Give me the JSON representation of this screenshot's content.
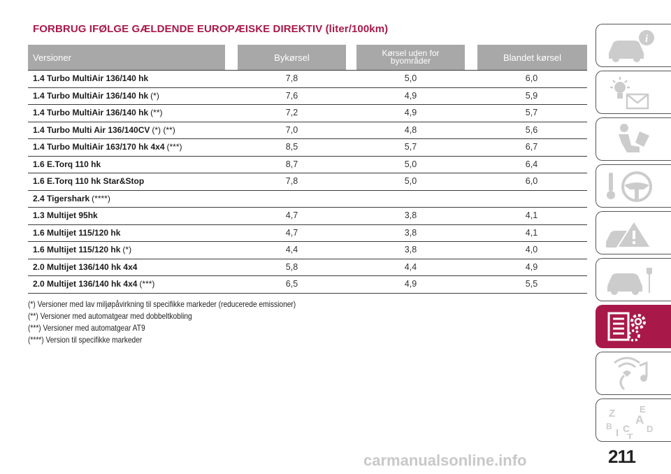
{
  "title": "FORBRUG IFØLGE GÆLDENDE EUROPÆISKE DIREKTIV (liter/100km)",
  "table": {
    "headers": [
      "Versioner",
      "Bykørsel",
      "Kørsel uden for byområder",
      "Blandet kørsel"
    ],
    "rows": [
      {
        "name": "1.4 Turbo MultiAir 136/140 hk",
        "note": "",
        "city": "7,8",
        "extra": "5,0",
        "combined": "6,0"
      },
      {
        "name": "1.4 Turbo MultiAir 136/140 hk",
        "note": "(*)",
        "city": "7,6",
        "extra": "4,9",
        "combined": "5,9"
      },
      {
        "name": "1.4 Turbo MultiAir 136/140 hk",
        "note": "(**)",
        "city": "7,2",
        "extra": "4,9",
        "combined": "5,7"
      },
      {
        "name": "1.4 Turbo Multi Air 136/140CV",
        "note": "(*) (**)",
        "city": "7,0",
        "extra": "4,8",
        "combined": "5,6"
      },
      {
        "name": "1.4 Turbo MultiAir 163/170 hk 4x4",
        "note": "(***)",
        "city": "8,5",
        "extra": "5,7",
        "combined": "6,7"
      },
      {
        "name": "1.6 E.Torq 110 hk",
        "note": "",
        "city": "8,7",
        "extra": "5,0",
        "combined": "6,4"
      },
      {
        "name": "1.6 E.Torq 110 hk Star&Stop",
        "note": "",
        "city": "7,8",
        "extra": "5,0",
        "combined": "6,0"
      },
      {
        "name": "2.4 Tigershark",
        "note": "(****)",
        "city": "",
        "extra": "",
        "combined": ""
      },
      {
        "name": "1.3 Multijet 95hk",
        "note": "",
        "city": "4,7",
        "extra": "3,8",
        "combined": "4,1"
      },
      {
        "name": "1.6 Multijet 115/120 hk",
        "note": "",
        "city": "4,7",
        "extra": "3,8",
        "combined": "4,1"
      },
      {
        "name": "1.6 Multijet 115/120 hk",
        "note": "(*)",
        "city": "4,4",
        "extra": "3,8",
        "combined": "4,0"
      },
      {
        "name": "2.0 Multijet 136/140 hk 4x4",
        "note": "",
        "city": "5,8",
        "extra": "4,4",
        "combined": "4,9"
      },
      {
        "name": "2.0 Multijet 136/140 hk 4x4",
        "note": "(***)",
        "city": "6,5",
        "extra": "4,9",
        "combined": "5,5"
      }
    ]
  },
  "notes": [
    "(*) Versioner med lav miljøpåvirkning til specifikke markeder (reducerede emissioner)",
    "(**) Versioner med automatgear med dobbeltkobling",
    "(***) Versioner med automatgear AT9",
    "(****) Version til specifikke markeder"
  ],
  "sidebar": {
    "tabs": [
      {
        "icon": "car-info-icon"
      },
      {
        "icon": "warning-lights-icon"
      },
      {
        "icon": "seat-safety-icon"
      },
      {
        "icon": "steering-wheel-icon"
      },
      {
        "icon": "emergency-icon"
      },
      {
        "icon": "maintenance-icon"
      },
      {
        "icon": "technical-data-icon",
        "active": true
      },
      {
        "icon": "multimedia-icon"
      },
      {
        "icon": "index-icon"
      }
    ],
    "active_color": "#a8194a"
  },
  "page_number": "211",
  "watermark": "carmanualsonline.info",
  "colors": {
    "title": "#a8194a",
    "header_bg": "#a8a8a8"
  }
}
